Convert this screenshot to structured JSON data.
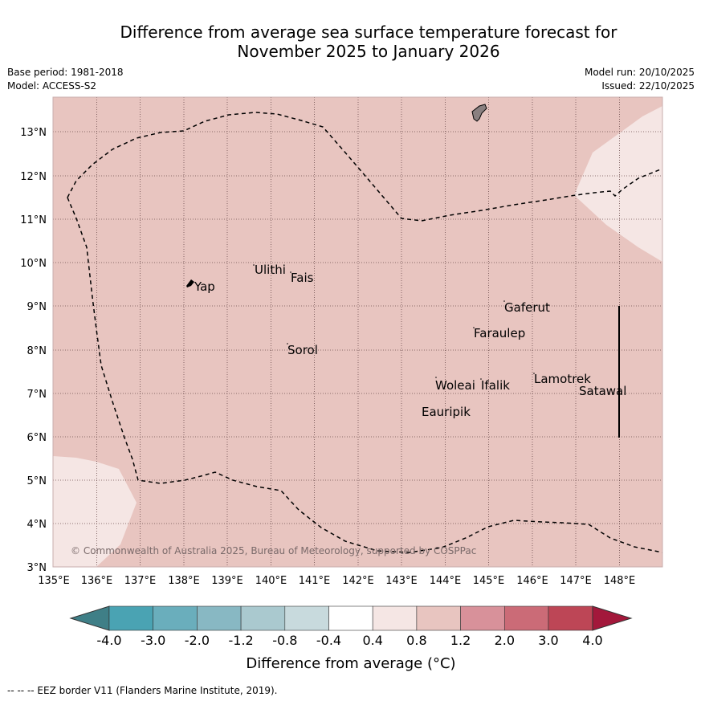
{
  "header": {
    "title_line1": "Difference from average sea surface temperature forecast for",
    "title_line2": "November 2025 to January 2026",
    "base_period": "Base period: 1981-2018",
    "model": "Model: ACCESS-S2",
    "model_run": "Model run: 20/10/2025",
    "issued": "Issued: 22/10/2025"
  },
  "map": {
    "longitude_ticks": [
      "135°E",
      "136°E",
      "137°E",
      "138°E",
      "139°E",
      "140°E",
      "141°E",
      "142°E",
      "143°E",
      "144°E",
      "145°E",
      "146°E",
      "147°E",
      "148°E"
    ],
    "latitude_ticks": [
      "3°N",
      "4°N",
      "5°N",
      "6°N",
      "7°N",
      "8°N",
      "9°N",
      "10°N",
      "11°N",
      "12°N",
      "13°N"
    ],
    "places": [
      "Yap",
      "Ulithi",
      "Fais",
      "Gaferut",
      "Faraulep",
      "Sorol",
      "Lamotrek",
      "Woleai",
      "Ifalik",
      "Satawal",
      "Eauripik"
    ],
    "copyright": "© Commonwealth of Australia 2025, Bureau of Meteorology, supported by COSPPac"
  },
  "colorbar": {
    "label": "Difference from average (°C)",
    "ticks": [
      "-4.0",
      "-3.0",
      "-2.0",
      "-1.2",
      "-0.8",
      "-0.4",
      "0.4",
      "0.8",
      "1.2",
      "2.0",
      "3.0",
      "4.0"
    ],
    "colors": [
      "#3f7f87",
      "#4aa3b3",
      "#6aaebc",
      "#88b8c3",
      "#aac9cf",
      "#c8dadd",
      "#ffffff",
      "#f5e6e4",
      "#e8c5c0",
      "#d8919a",
      "#cb6b77",
      "#bd4656",
      "#a3183b"
    ]
  },
  "footnote": "--  --  -- EEZ border V11 (Flanders Marine Institute, 2019)."
}
